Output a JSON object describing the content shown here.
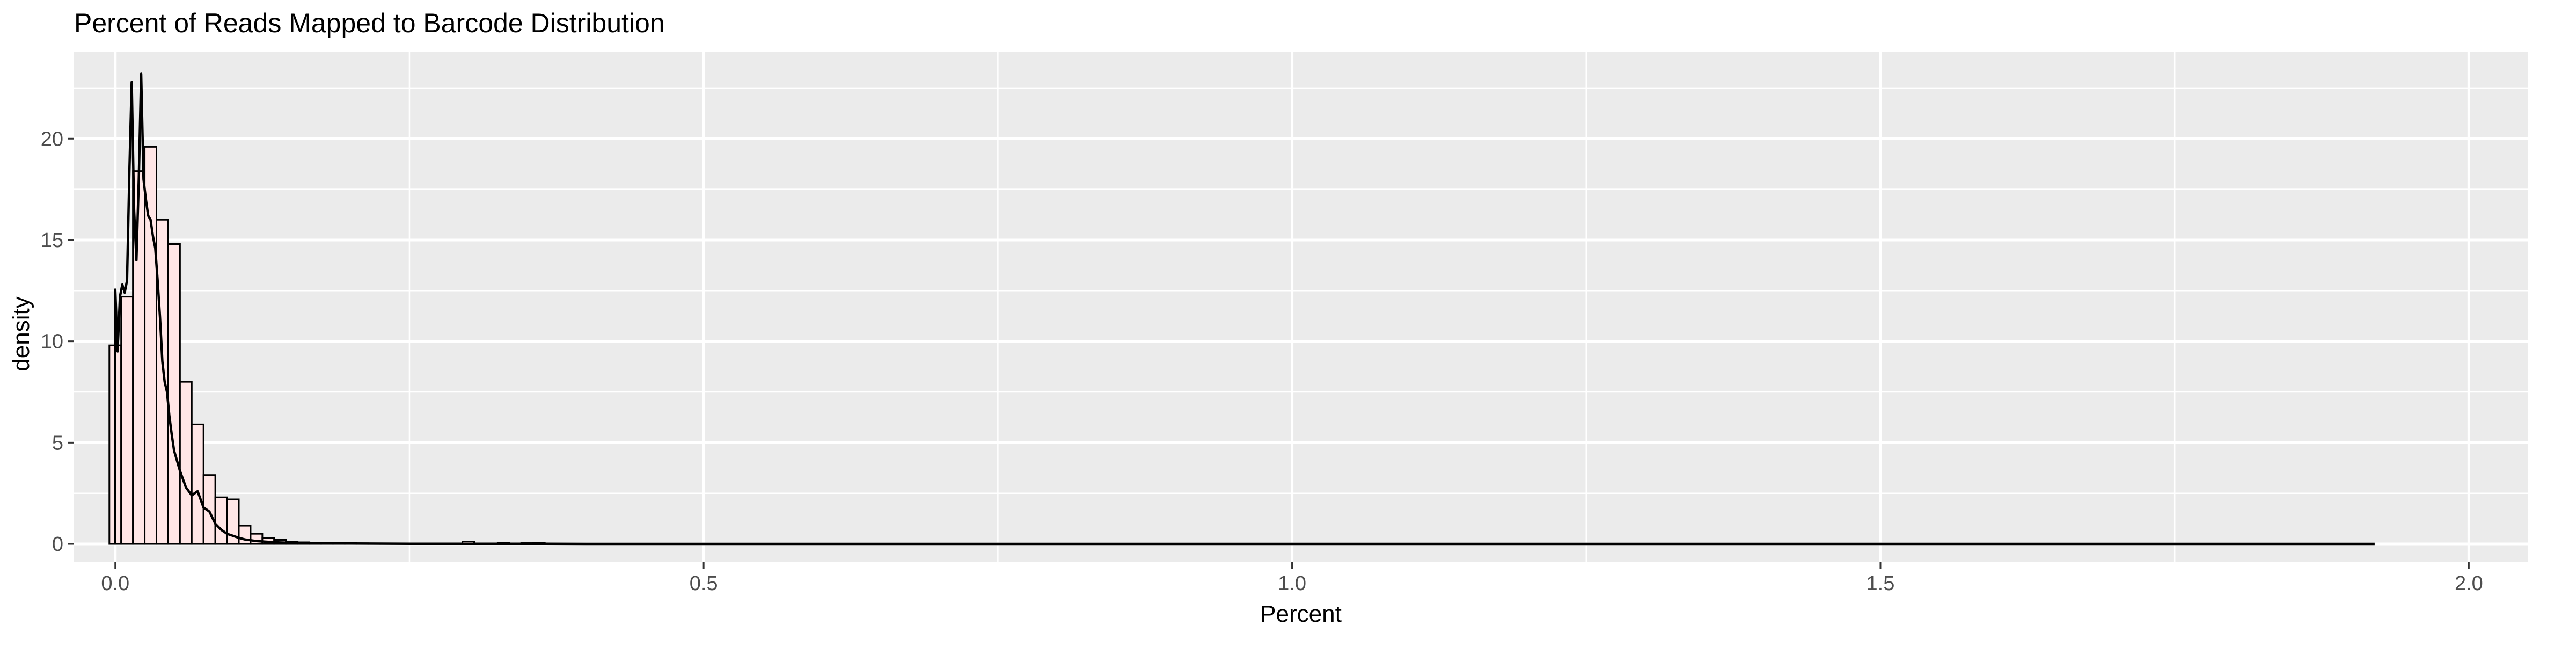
{
  "chart_data": {
    "type": "histogram",
    "title": "Percent of Reads Mapped to Barcode Distribution",
    "xlabel": "Percent",
    "ylabel": "density",
    "xlim": [
      -0.035,
      2.05
    ],
    "ylim": [
      -0.9,
      24.3
    ],
    "x_ticks": [
      0.0,
      0.5,
      1.0,
      1.5,
      2.0
    ],
    "x_tick_labels": [
      "0.0",
      "0.5",
      "1.0",
      "1.5",
      "2.0"
    ],
    "y_ticks": [
      0,
      5,
      10,
      15,
      20
    ],
    "y_tick_labels": [
      "0",
      "5",
      "10",
      "15",
      "20"
    ],
    "grid": true,
    "legend": "none",
    "colors": {
      "panel_background": "#ebebeb",
      "grid": "#ffffff",
      "bar_fill": "#ffe6e6",
      "bar_outline": "#000000",
      "density_line": "#000000",
      "text": "#000000",
      "tick_label": "#4d4d4d"
    },
    "histogram": {
      "bin_width": 0.01,
      "bin_start": -0.005,
      "density": [
        9.8,
        12.2,
        18.4,
        19.6,
        16.0,
        14.8,
        8.0,
        5.9,
        3.4,
        2.3,
        2.2,
        0.9,
        0.5,
        0.3,
        0.2,
        0.12,
        0.08,
        0.06,
        0.05,
        0.04,
        0.06,
        0.03,
        0.02,
        0.02,
        0.02,
        0.01,
        0.01,
        0.01,
        0.01,
        0.01,
        0.12,
        0.02,
        0.01,
        0.06,
        0.01,
        0.04,
        0.06,
        0.01
      ]
    },
    "density_curve": {
      "x": [
        0.0,
        0.002,
        0.004,
        0.006,
        0.008,
        0.01,
        0.012,
        0.014,
        0.016,
        0.018,
        0.02,
        0.022,
        0.024,
        0.026,
        0.028,
        0.03,
        0.032,
        0.034,
        0.036,
        0.038,
        0.04,
        0.042,
        0.044,
        0.046,
        0.048,
        0.05,
        0.055,
        0.06,
        0.065,
        0.07,
        0.075,
        0.08,
        0.085,
        0.09,
        0.095,
        0.1,
        0.105,
        0.11,
        0.115,
        0.12,
        0.13,
        0.14,
        0.15,
        0.16,
        0.18,
        0.2,
        0.25,
        0.3,
        0.35,
        0.4,
        0.6,
        1.0,
        1.5,
        1.92
      ],
      "y": [
        12.6,
        9.5,
        12.2,
        12.8,
        12.4,
        13.0,
        18.4,
        22.8,
        16.5,
        14.0,
        18.0,
        23.2,
        18.0,
        17.0,
        16.2,
        16.0,
        15.2,
        14.6,
        13.0,
        11.2,
        9.0,
        8.0,
        7.5,
        6.3,
        5.4,
        4.6,
        3.6,
        2.8,
        2.4,
        2.6,
        1.8,
        1.6,
        1.0,
        0.7,
        0.5,
        0.4,
        0.3,
        0.22,
        0.18,
        0.14,
        0.1,
        0.07,
        0.05,
        0.04,
        0.03,
        0.02,
        0.01,
        0.01,
        0.01,
        0.0,
        0.0,
        0.0,
        0.0,
        0.0
      ]
    }
  }
}
